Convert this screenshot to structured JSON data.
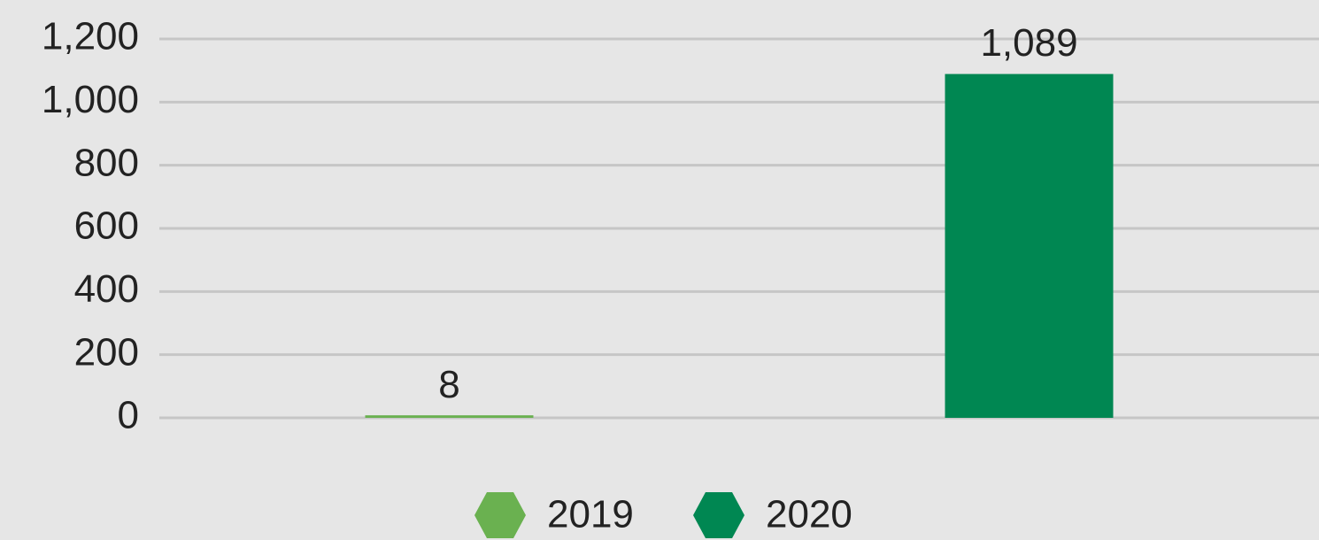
{
  "chart_data": {
    "type": "bar",
    "categories": [
      null
    ],
    "series": [
      {
        "name": "2019",
        "color": "#6ab150",
        "values": [
          8
        ]
      },
      {
        "name": "2020",
        "color": "#008752",
        "values": [
          1089
        ],
        "value_labels": [
          "1,089"
        ]
      }
    ],
    "ylim": [
      0,
      1200
    ],
    "yticks": [
      0,
      200,
      400,
      600,
      800,
      {
        "value": 1000,
        "label": "1,000"
      },
      {
        "value": 1200,
        "label": "1,200"
      }
    ],
    "grid": true,
    "legend": "bottom"
  }
}
